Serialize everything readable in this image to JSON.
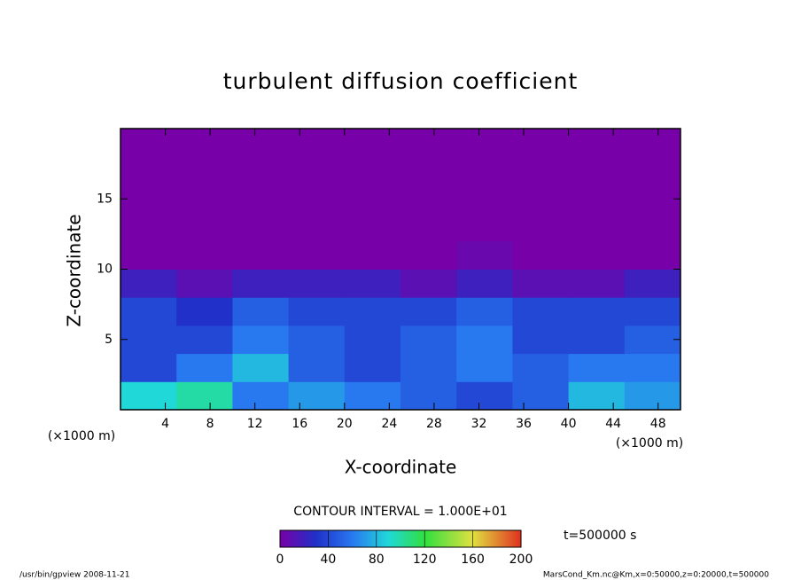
{
  "chart_data": {
    "type": "heatmap",
    "title": "turbulent diffusion coefficient",
    "xlabel": "X-coordinate",
    "ylabel": "Z-coordinate",
    "xunit_left": "(×1000 m)",
    "xunit_right": "(×1000 m)",
    "contour_label": "CONTOUR INTERVAL = 1.000E+01",
    "time_label": "t=500000 s",
    "footer_left": "/usr/bin/gpview  2008-11-21",
    "footer_right": "MarsCond_Km.nc@Km,x=0:50000,z=0:20000,t=500000",
    "xlim": [
      0,
      50
    ],
    "ylim": [
      0,
      20
    ],
    "xticks": [
      4,
      8,
      12,
      16,
      20,
      24,
      28,
      32,
      36,
      40,
      44,
      48
    ],
    "yticks": [
      5,
      10,
      15
    ],
    "xbins": [
      0,
      5,
      10,
      15,
      20,
      25,
      30,
      35,
      40,
      45,
      50
    ],
    "ybins": [
      0,
      2,
      4,
      6,
      8,
      10,
      12,
      14,
      16,
      18,
      20
    ],
    "z": [
      [
        90,
        100,
        60,
        70,
        60,
        50,
        40,
        50,
        80,
        70
      ],
      [
        40,
        60,
        80,
        50,
        40,
        50,
        60,
        50,
        60,
        60
      ],
      [
        40,
        40,
        60,
        50,
        40,
        50,
        60,
        40,
        40,
        50
      ],
      [
        40,
        30,
        50,
        40,
        40,
        40,
        50,
        40,
        40,
        40
      ],
      [
        20,
        10,
        20,
        20,
        20,
        10,
        20,
        10,
        10,
        20
      ],
      [
        0,
        0,
        0,
        0,
        0,
        0,
        5,
        0,
        0,
        0
      ],
      [
        0,
        0,
        0,
        0,
        0,
        0,
        0,
        0,
        0,
        0
      ],
      [
        0,
        0,
        0,
        0,
        0,
        0,
        0,
        0,
        0,
        0
      ],
      [
        0,
        0,
        0,
        0,
        0,
        0,
        0,
        0,
        0,
        0
      ],
      [
        0,
        0,
        0,
        0,
        0,
        0,
        0,
        0,
        0,
        0
      ]
    ],
    "clim": [
      0,
      200
    ],
    "cticks": [
      0,
      40,
      80,
      120,
      160,
      200
    ],
    "colorscale": [
      {
        "value": 0,
        "color": "#7800a8"
      },
      {
        "value": 30,
        "color": "#2030c8"
      },
      {
        "value": 60,
        "color": "#2878f0"
      },
      {
        "value": 90,
        "color": "#20d8d8"
      },
      {
        "value": 120,
        "color": "#30e040"
      },
      {
        "value": 160,
        "color": "#e0e040"
      },
      {
        "value": 200,
        "color": "#e03020"
      }
    ]
  }
}
